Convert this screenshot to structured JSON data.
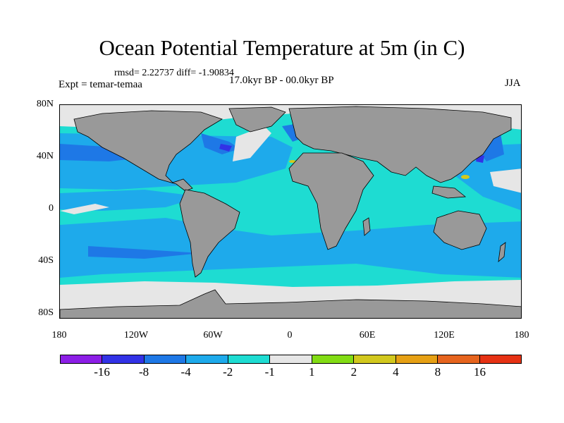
{
  "title": "Ocean Potential Temperature at 5m (in C)",
  "stats": "rmsd= 2.22737 diff= -1.90834",
  "experiment": "Expt = temar-temaa",
  "period": "17.0kyr BP - 00.0kyr BP",
  "season": "JJA",
  "y_axis_labels": [
    "80N",
    "40N",
    "0",
    "40S",
    "80S"
  ],
  "x_axis_labels": [
    "180",
    "120W",
    "60W",
    "0",
    "60E",
    "120E",
    "180"
  ],
  "colorbar": {
    "labels": [
      "-16",
      "-8",
      "-4",
      "-2",
      "-1",
      "1",
      "2",
      "4",
      "8",
      "16"
    ],
    "colors": [
      "#8c1ee6",
      "#3232e6",
      "#1e78e6",
      "#1eaaeb",
      "#1edcd2",
      "#e6e6e6",
      "#82dc14",
      "#d2c81e",
      "#e6a014",
      "#e6641e",
      "#e63214"
    ]
  },
  "map_colors": {
    "land": "#999999",
    "missing": "#e6e6e6",
    "ocean_base": "#1edcd2",
    "cool": "#1eaaeb",
    "colder": "#1e78e6",
    "coldest": "#3232e6",
    "warm": "#82dc14",
    "warmer": "#d2c81e"
  }
}
